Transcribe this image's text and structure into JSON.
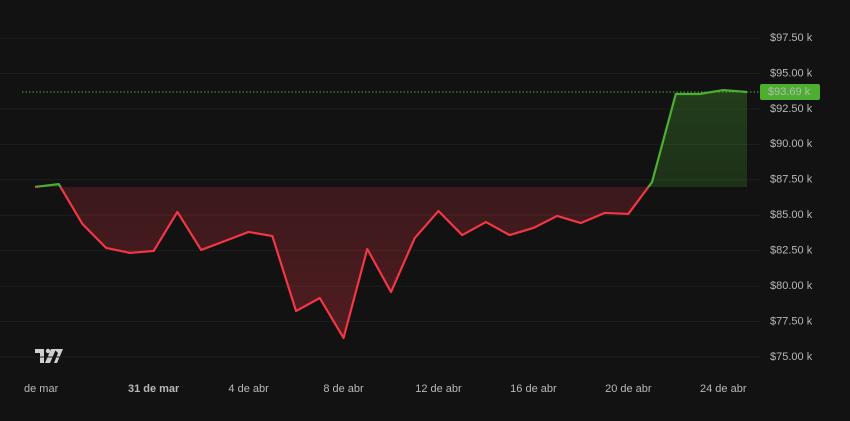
{
  "chart_data": {
    "type": "line",
    "categories": [
      "de mar",
      null,
      null,
      null,
      null,
      "31 de mar",
      null,
      null,
      null,
      "4 de abr",
      null,
      null,
      null,
      "8 de abr",
      null,
      null,
      null,
      "12 de abr",
      null,
      null,
      null,
      "16 de abr",
      null,
      null,
      null,
      "20 de abr",
      null,
      null,
      null,
      "24 de abr",
      null
    ],
    "bold_category": "31 de mar",
    "series": [
      {
        "color": "#f23645",
        "up_color": "#4caf30",
        "values": [
          86990,
          87200,
          84380,
          82690,
          82340,
          82480,
          85230,
          82550,
          83180,
          83820,
          83530,
          78240,
          79160,
          76340,
          82620,
          79580,
          83390,
          85300,
          83600,
          84520,
          83600,
          84100,
          84950,
          84450,
          85160,
          85090,
          87340,
          93550,
          93550,
          93830,
          93690
        ]
      }
    ],
    "ylim": [
      73730,
      98770
    ],
    "yticks": [
      {
        "value": 75000,
        "label": "$75.00 k"
      },
      {
        "value": 77500,
        "label": "$77.50 k"
      },
      {
        "value": 80000,
        "label": "$80.00 k"
      },
      {
        "value": 82500,
        "label": "$82.50 k"
      },
      {
        "value": 85000,
        "label": "$85.00 k"
      },
      {
        "value": 87500,
        "label": "$87.50 k"
      },
      {
        "value": 90000,
        "label": "$90.00 k"
      },
      {
        "value": 92500,
        "label": "$92.50 k"
      },
      {
        "value": 95000,
        "label": "$95.00 k"
      },
      {
        "value": 97500,
        "label": "$97.50 k"
      }
    ],
    "grid": true,
    "price_line": {
      "value": 93690,
      "label": "$93.69 k"
    }
  }
}
